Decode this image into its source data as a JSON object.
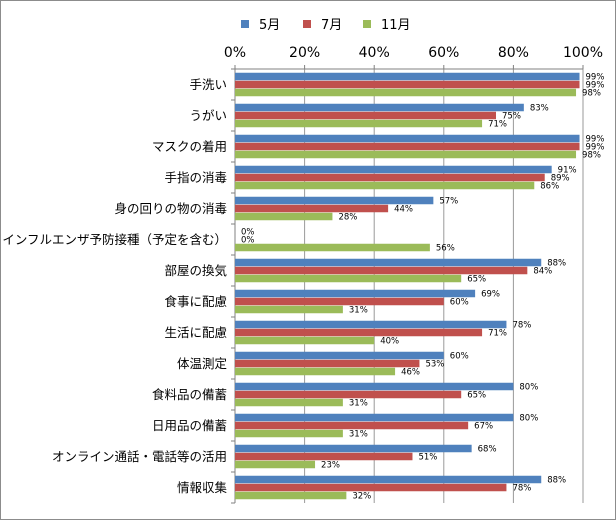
{
  "colors": {
    "may": "#4f81bd",
    "jul": "#c0504d",
    "nov": "#9bbb59"
  },
  "chart_data": {
    "type": "bar",
    "orientation": "horizontal",
    "title": "",
    "xlabel": "",
    "ylabel": "",
    "xlim": [
      0,
      100
    ],
    "x_ticks": [
      "0%",
      "20%",
      "40%",
      "60%",
      "80%",
      "100%"
    ],
    "tick_values": [
      0,
      20,
      40,
      60,
      80,
      100
    ],
    "legend_position": "top",
    "grid": "vertical",
    "categories": [
      "手洗い",
      "うがい",
      "マスクの着用",
      "手指の消毒",
      "身の回りの物の消毒",
      "インフルエンザ予防接種（予定を含む）",
      "部屋の換気",
      "食事に配慮",
      "生活に配慮",
      "体温測定",
      "食料品の備蓄",
      "日用品の備蓄",
      "オンライン通話・電話等の活用",
      "情報収集"
    ],
    "series": [
      {
        "name": "5月",
        "color": "#4f81bd",
        "values": [
          99,
          83,
          99,
          91,
          57,
          0,
          88,
          69,
          78,
          60,
          80,
          80,
          68,
          88
        ]
      },
      {
        "name": "7月",
        "color": "#c0504d",
        "values": [
          99,
          75,
          99,
          89,
          44,
          0,
          84,
          60,
          71,
          53,
          65,
          67,
          51,
          78
        ]
      },
      {
        "name": "11月",
        "color": "#9bbb59",
        "values": [
          98,
          71,
          98,
          86,
          28,
          56,
          65,
          31,
          40,
          46,
          31,
          31,
          23,
          32
        ]
      }
    ]
  }
}
